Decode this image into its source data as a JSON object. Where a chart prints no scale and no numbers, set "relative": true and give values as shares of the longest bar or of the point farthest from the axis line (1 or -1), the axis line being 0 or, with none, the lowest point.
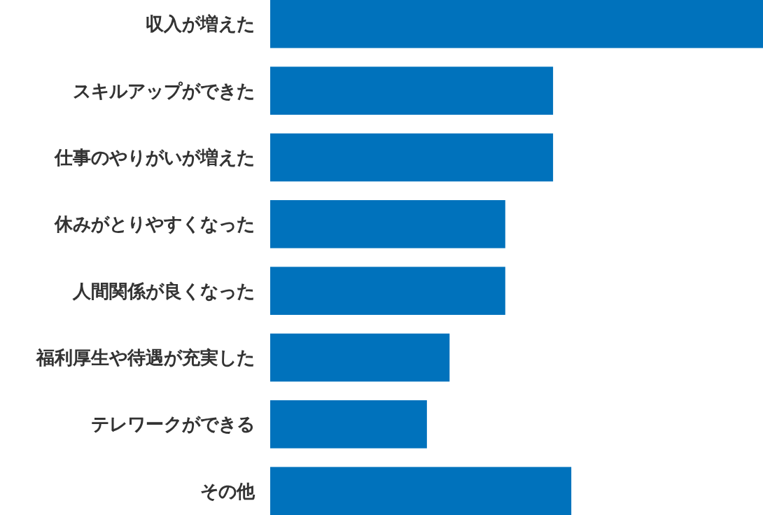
{
  "chart_data": {
    "type": "bar",
    "orientation": "horizontal",
    "relative": true,
    "categories": [
      "収入が増えた",
      "スキルアップができた",
      "仕事のやりがいが増えた",
      "休みがとりやすくなった",
      "人間関係が良くなった",
      "福利厚生や待遇が充実した",
      "テレワークができる",
      "その他"
    ],
    "values": [
      1,
      0.574,
      0.574,
      0.477,
      0.477,
      0.364,
      0.318,
      0.611
    ],
    "color": "#0072bc"
  }
}
